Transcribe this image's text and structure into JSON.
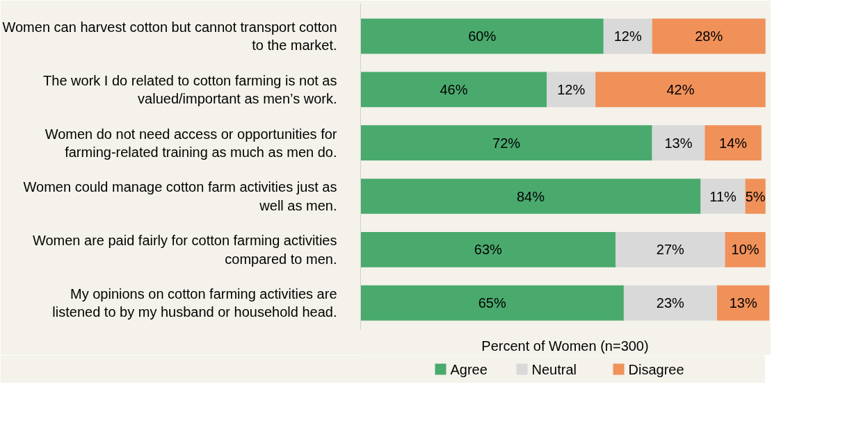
{
  "chart_data": {
    "type": "bar",
    "orientation": "horizontal",
    "stacked": true,
    "xlabel": "Percent of Women (n=300)",
    "categories": [
      "Women can harvest cotton but cannot transport cotton to the market.",
      "The work I do related to cotton farming is not as valued/important as men’s work.",
      "Women do not need access or opportunities for farming-related training as much as men do.",
      "Women could manage cotton farm activities just as well as men.",
      "Women are paid fairly for cotton farming activities compared to men.",
      "My opinions on cotton farming activities are listened to by my husband or household head."
    ],
    "series": [
      {
        "name": "Agree",
        "color": "#4aaa6e",
        "values": [
          60,
          46,
          72,
          84,
          63,
          65
        ],
        "value_labels": [
          "60%",
          "46%",
          "72%",
          "84%",
          "63%",
          "65%"
        ]
      },
      {
        "name": "Neutral",
        "color": "#d9d9d9",
        "values": [
          12,
          12,
          13,
          11,
          27,
          23
        ],
        "value_labels": [
          "12%",
          "12%",
          "13%",
          "11%",
          "27%",
          "23%"
        ]
      },
      {
        "name": "Disagree",
        "color": "#f0915a",
        "values": [
          28,
          42,
          14,
          5,
          10,
          13
        ],
        "value_labels": [
          "28%",
          "42%",
          "14%",
          "5%",
          "10%",
          "13%"
        ]
      }
    ],
    "legend": "bottom",
    "grid": false
  }
}
